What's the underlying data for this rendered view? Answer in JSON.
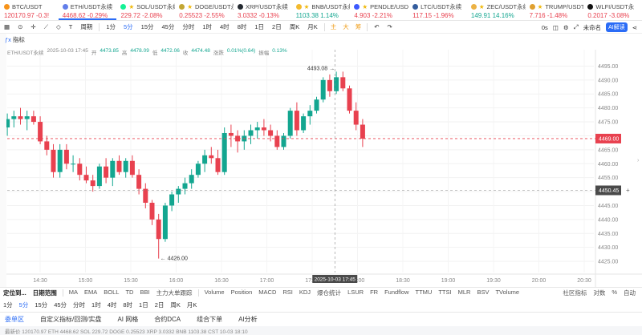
{
  "tickers": [
    {
      "name": "BTC/USDT",
      "price": "120170.97",
      "change": "-0.3!",
      "dir": "down",
      "icon_color": "#f7931a",
      "starred": false,
      "active": false
    },
    {
      "name": "ETH/USDT永续",
      "price": "4468.62",
      "change": "-0.29%",
      "dir": "down",
      "icon_color": "#627eea",
      "starred": false,
      "active": true
    },
    {
      "name": "SOL/USDT永续",
      "price": "229.72",
      "change": "-2.08%",
      "dir": "down",
      "icon_color": "#14f195",
      "starred": true,
      "active": false
    },
    {
      "name": "DOGE/USDT永续",
      "price": "0.25523",
      "change": "-2.55%",
      "dir": "down",
      "icon_color": "#c2a633",
      "starred": true,
      "active": false
    },
    {
      "name": "XRP/USDT永续",
      "price": "3.0332",
      "change": "-0.13%",
      "dir": "down",
      "icon_color": "#23292f",
      "starred": false,
      "active": false
    },
    {
      "name": "BNB/USDT永续",
      "price": "1103.38",
      "change": "1.14%",
      "dir": "up",
      "icon_color": "#f3ba2f",
      "starred": true,
      "active": false
    },
    {
      "name": "PENDLE/USDT",
      "price": "4.903",
      "change": "-2.21%",
      "dir": "down",
      "icon_color": "#3d5afe",
      "starred": true,
      "active": false
    },
    {
      "name": "LTC/USDT永续",
      "price": "117.15",
      "change": "-1.96%",
      "dir": "down",
      "icon_color": "#345d9d",
      "starred": false,
      "active": false
    },
    {
      "name": "ZEC/USDT永续",
      "price": "149.91",
      "change": "14.16%",
      "dir": "up",
      "icon_color": "#ecb244",
      "starred": true,
      "active": false
    },
    {
      "name": "TRUMP/USDT",
      "price": "7.716",
      "change": "-1.48%",
      "dir": "down",
      "icon_color": "#e0a030",
      "starred": true,
      "active": false
    },
    {
      "name": "WLFI/USDT永",
      "price": "0.2017",
      "change": "-3.08%",
      "dir": "down",
      "icon_color": "#111111",
      "starred": false,
      "active": false
    }
  ],
  "toolbar": {
    "intervals": [
      "1分",
      "5分",
      "15分",
      "45分",
      "分时",
      "1时",
      "4时",
      "8时",
      "1日",
      "2日",
      "周K",
      "月K"
    ],
    "active_interval": "5分",
    "cn_marks": [
      "主",
      "大",
      "筹"
    ],
    "interval_menu": "周期",
    "right_time": "0s",
    "layout_name": "未命名",
    "ai_label": "AI解读"
  },
  "indicator_button": "指标",
  "info": {
    "symbol": "ETH/USDT永续",
    "time": "2025-10-03 17:45",
    "open_label": "开",
    "open": "4473.85",
    "high_label": "高",
    "high": "4478.09",
    "low_label": "低",
    "low": "4472.06",
    "close_label": "收",
    "close": "4474.48",
    "change_label": "涨跌",
    "change": "0.01%(0.64)",
    "amp_label": "振幅",
    "amp": "0.13%"
  },
  "chart_data": {
    "type": "candlestick",
    "ylim": [
      4421,
      4498
    ],
    "y_ticks": [
      4425,
      4430,
      4435,
      4440,
      4445,
      4450,
      4455,
      4460,
      4465,
      4470,
      4475,
      4480,
      4485,
      4490,
      4495
    ],
    "x_ticks": [
      "14:30",
      "15:00",
      "15:30",
      "16:00",
      "16:30",
      "17:00",
      "17:30",
      "18:00",
      "18:30",
      "19:00",
      "19:30",
      "20:00",
      "20:30"
    ],
    "current_price": "4469.00",
    "crosshair_price": "4450.45",
    "crosshair_time": "2025-10-03 17:45",
    "high_marker": "4493.08",
    "low_marker": "4426.00",
    "candles": [
      {
        "o": 4473,
        "h": 4478,
        "l": 4470,
        "c": 4476
      },
      {
        "o": 4476,
        "h": 4479,
        "l": 4473,
        "c": 4477
      },
      {
        "o": 4477,
        "h": 4480,
        "l": 4474,
        "c": 4476
      },
      {
        "o": 4476,
        "h": 4479,
        "l": 4472,
        "c": 4477
      },
      {
        "o": 4477,
        "h": 4479,
        "l": 4474,
        "c": 4475
      },
      {
        "o": 4475,
        "h": 4477,
        "l": 4467,
        "c": 4468
      },
      {
        "o": 4468,
        "h": 4470,
        "l": 4463,
        "c": 4465
      },
      {
        "o": 4465,
        "h": 4467,
        "l": 4455,
        "c": 4457
      },
      {
        "o": 4457,
        "h": 4467,
        "l": 4455,
        "c": 4465
      },
      {
        "o": 4465,
        "h": 4467,
        "l": 4458,
        "c": 4460
      },
      {
        "o": 4460,
        "h": 4463,
        "l": 4457,
        "c": 4460
      },
      {
        "o": 4460,
        "h": 4462,
        "l": 4454,
        "c": 4456
      },
      {
        "o": 4456,
        "h": 4459,
        "l": 4453,
        "c": 4454
      },
      {
        "o": 4454,
        "h": 4456,
        "l": 4450,
        "c": 4452
      },
      {
        "o": 4452,
        "h": 4460,
        "l": 4451,
        "c": 4459
      },
      {
        "o": 4459,
        "h": 4462,
        "l": 4453,
        "c": 4455
      },
      {
        "o": 4455,
        "h": 4462,
        "l": 4452,
        "c": 4461
      },
      {
        "o": 4461,
        "h": 4463,
        "l": 4456,
        "c": 4457
      },
      {
        "o": 4457,
        "h": 4462,
        "l": 4455,
        "c": 4461
      },
      {
        "o": 4461,
        "h": 4463,
        "l": 4455,
        "c": 4456
      },
      {
        "o": 4456,
        "h": 4458,
        "l": 4449,
        "c": 4451
      },
      {
        "o": 4451,
        "h": 4453,
        "l": 4444,
        "c": 4446
      },
      {
        "o": 4446,
        "h": 4447,
        "l": 4438,
        "c": 4440
      },
      {
        "o": 4440,
        "h": 4442,
        "l": 4426,
        "c": 4433
      },
      {
        "o": 4433,
        "h": 4446,
        "l": 4432,
        "c": 4445
      },
      {
        "o": 4445,
        "h": 4450,
        "l": 4443,
        "c": 4449
      },
      {
        "o": 4449,
        "h": 4452,
        "l": 4446,
        "c": 4451
      },
      {
        "o": 4451,
        "h": 4455,
        "l": 4449,
        "c": 4453
      },
      {
        "o": 4453,
        "h": 4458,
        "l": 4451,
        "c": 4456
      },
      {
        "o": 4456,
        "h": 4461,
        "l": 4455,
        "c": 4460
      },
      {
        "o": 4460,
        "h": 4465,
        "l": 4457,
        "c": 4463
      },
      {
        "o": 4463,
        "h": 4466,
        "l": 4460,
        "c": 4462
      },
      {
        "o": 4462,
        "h": 4465,
        "l": 4456,
        "c": 4457
      },
      {
        "o": 4457,
        "h": 4473,
        "l": 4456,
        "c": 4471
      },
      {
        "o": 4471,
        "h": 4474,
        "l": 4466,
        "c": 4470
      },
      {
        "o": 4470,
        "h": 4472,
        "l": 4464,
        "c": 4468
      },
      {
        "o": 4468,
        "h": 4472,
        "l": 4465,
        "c": 4470
      },
      {
        "o": 4470,
        "h": 4474,
        "l": 4467,
        "c": 4472
      },
      {
        "o": 4472,
        "h": 4475,
        "l": 4469,
        "c": 4473
      },
      {
        "o": 4473,
        "h": 4476,
        "l": 4470,
        "c": 4472
      },
      {
        "o": 4472,
        "h": 4474,
        "l": 4468,
        "c": 4470
      },
      {
        "o": 4470,
        "h": 4472,
        "l": 4465,
        "c": 4466
      },
      {
        "o": 4466,
        "h": 4471,
        "l": 4465,
        "c": 4470
      },
      {
        "o": 4470,
        "h": 4480,
        "l": 4469,
        "c": 4479
      },
      {
        "o": 4479,
        "h": 4482,
        "l": 4470,
        "c": 4472
      },
      {
        "o": 4472,
        "h": 4478,
        "l": 4471,
        "c": 4477
      },
      {
        "o": 4477,
        "h": 4481,
        "l": 4474,
        "c": 4479
      },
      {
        "o": 4479,
        "h": 4484,
        "l": 4478,
        "c": 4483
      },
      {
        "o": 4483,
        "h": 4491,
        "l": 4482,
        "c": 4490
      },
      {
        "o": 4490,
        "h": 4492,
        "l": 4484,
        "c": 4486
      },
      {
        "o": 4486,
        "h": 4493,
        "l": 4485,
        "c": 4491
      },
      {
        "o": 4491,
        "h": 4493,
        "l": 4486,
        "c": 4487
      },
      {
        "o": 4487,
        "h": 4488,
        "l": 4478,
        "c": 4479
      },
      {
        "o": 4479,
        "h": 4482,
        "l": 4472,
        "c": 4474
      },
      {
        "o": 4474,
        "h": 4476,
        "l": 4466,
        "c": 4469
      }
    ]
  },
  "indicator_bar": {
    "locate": "定位到...",
    "range": "日期范围",
    "main": [
      "MA",
      "EMA",
      "BOLL",
      "TD",
      "BBI",
      "主力大单跟踪"
    ],
    "sub": [
      "Volume",
      "Position",
      "MACD",
      "RSI",
      "KDJ",
      "爆仓统计",
      "LSUR",
      "FR",
      "Fundflow",
      "TTMU",
      "TTSI",
      "MLR",
      "BSV",
      "TVolume"
    ],
    "right": [
      "社区指标",
      "对数",
      "%",
      "自动"
    ]
  },
  "timeframe_bar": {
    "items": [
      "1分",
      "5分",
      "15分",
      "45分",
      "分时",
      "1时",
      "4时",
      "8时",
      "1日",
      "2日",
      "周K",
      "月K"
    ],
    "active": "5分"
  },
  "bottom_tabs": {
    "items": [
      "委单区",
      "自定义指标/回测/实盘",
      "AI 网格",
      "合约DCA",
      "组合下单",
      "AI分析"
    ],
    "active": "委单区"
  },
  "status_text": "最新价  120170.97   ETH 4468.62   SOL 229.72   DOGE 0.25523   XRP 3.0332   BNB 1103.38   CST 10-03 18:10"
}
